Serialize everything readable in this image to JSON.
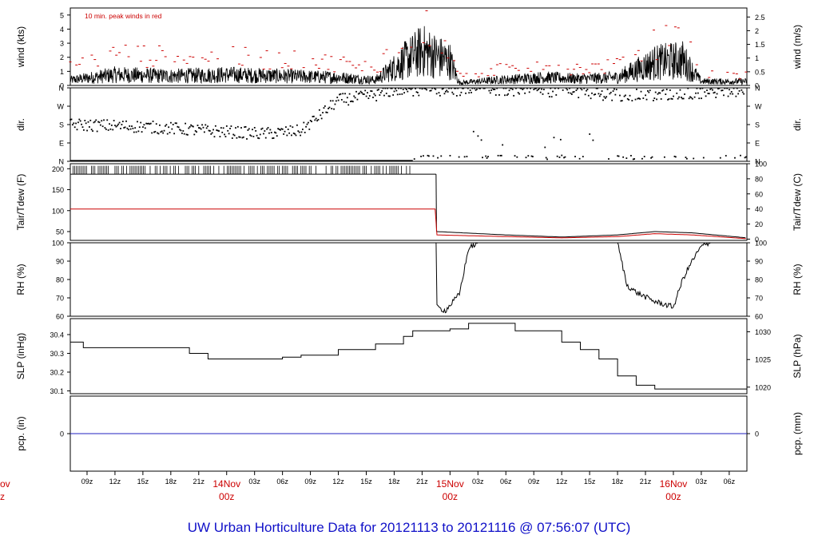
{
  "footer": {
    "title": "UW Urban Horticulture Data for 20121113  to  20121116 @ 07:56:07  (UTC)"
  },
  "colors": {
    "frame": "#000000",
    "series_main": "#000000",
    "series_red": "#cc0000",
    "pcp_line": "#2020c0",
    "day_label": "#cc0000",
    "footer": "#1010c8"
  },
  "chart_data": {
    "type": "line",
    "x_axis": {
      "hour_ticks": [
        "09z",
        "12z",
        "15z",
        "18z",
        "21z",
        "03z",
        "06z",
        "09z",
        "12z",
        "15z",
        "18z",
        "21z",
        "03z",
        "06z",
        "09z",
        "12z",
        "15z",
        "18z",
        "21z",
        "03z",
        "06z"
      ],
      "day_labels": [
        {
          "line1": "14Nov",
          "line2": "00z",
          "hour": 24
        },
        {
          "line1": "15Nov",
          "line2": "00z",
          "hour": 48
        },
        {
          "line1": "16Nov",
          "line2": "00z",
          "hour": 72
        }
      ],
      "edge_label": {
        "line1": "ov",
        "line2": "z"
      },
      "range_hours": [
        7.2,
        79.9
      ]
    },
    "panels": [
      {
        "id": "wind",
        "left_label": "wind (kts)",
        "right_label": "wind (m/s)",
        "annotation": "10 min. peak winds in red",
        "left_ticks": [
          "0",
          "1",
          "2",
          "3",
          "4",
          "5"
        ],
        "left_range": [
          0,
          5.5
        ],
        "right_ticks": [
          "0",
          "0.5",
          "1",
          "1.5",
          "2",
          "2.5"
        ],
        "series": [
          {
            "kind": "line",
            "color": "black",
            "profile": [
              [
                7.2,
                0.4
              ],
              [
                12,
                0.8
              ],
              [
                18,
                0.7
              ],
              [
                24,
                0.8
              ],
              [
                30,
                0.7
              ],
              [
                36,
                0.6
              ],
              [
                40,
                0.4
              ],
              [
                43,
                1.8
              ],
              [
                45,
                2.6
              ],
              [
                48,
                1.8
              ],
              [
                49,
                0.2
              ],
              [
                53,
                0.4
              ],
              [
                58,
                0.6
              ],
              [
                62,
                0.5
              ],
              [
                66,
                0.6
              ],
              [
                70,
                1.7
              ],
              [
                73,
                1.9
              ],
              [
                75,
                0.3
              ],
              [
                79.9,
                0.3
              ]
            ]
          },
          {
            "kind": "points",
            "color": "red",
            "profile": [
              [
                7.2,
                1.3
              ],
              [
                12,
                2.2
              ],
              [
                18,
                2.0
              ],
              [
                24,
                2.0
              ],
              [
                30,
                1.8
              ],
              [
                36,
                1.6
              ],
              [
                40,
                1.2
              ],
              [
                43,
                3.5
              ],
              [
                45,
                4.5
              ],
              [
                48,
                3.0
              ],
              [
                49,
                0.6
              ],
              [
                53,
                1.2
              ],
              [
                58,
                1.4
              ],
              [
                62,
                1.2
              ],
              [
                66,
                1.4
              ],
              [
                70,
                3.0
              ],
              [
                73,
                3.3
              ],
              [
                75,
                0.8
              ],
              [
                79.9,
                0.7
              ]
            ]
          }
        ]
      },
      {
        "id": "dir",
        "left_label": "dir.",
        "right_label": "dir.",
        "left_ticks": [
          "N",
          "E",
          "S",
          "W",
          "N"
        ],
        "left_range": [
          0,
          360
        ],
        "right_ticks": [
          "N",
          "E",
          "S",
          "W",
          "N"
        ],
        "series": [
          {
            "kind": "points",
            "color": "black",
            "profile": [
              [
                7.2,
                180
              ],
              [
                15,
                170
              ],
              [
                22,
                150
              ],
              [
                28,
                135
              ],
              [
                32,
                150
              ],
              [
                36,
                300
              ],
              [
                40,
                325
              ],
              [
                42,
                350
              ],
              [
                48,
                345
              ],
              [
                52,
                355
              ],
              [
                60,
                345
              ],
              [
                64,
                330
              ],
              [
                70,
                320
              ],
              [
                76,
                340
              ],
              [
                79.9,
                350
              ]
            ]
          }
        ]
      },
      {
        "id": "temp",
        "left_label": "Tair/Tdew (F)",
        "right_label": "Tair/Tdew (C)",
        "left_ticks": [
          "50",
          "100",
          "150",
          "200"
        ],
        "left_range": [
          29,
          212
        ],
        "right_ticks": [
          "0",
          "20",
          "40",
          "60",
          "80",
          "100"
        ],
        "series": [
          {
            "kind": "line",
            "color": "black",
            "name": "Tair",
            "profile": [
              [
                7.2,
                187
              ],
              [
                46.5,
                187
              ],
              [
                46.55,
                50
              ],
              [
                54,
                42
              ],
              [
                60,
                37
              ],
              [
                66,
                42
              ],
              [
                70,
                50
              ],
              [
                74,
                47
              ],
              [
                79.9,
                35
              ]
            ]
          },
          {
            "kind": "line",
            "color": "red",
            "name": "Tdew",
            "profile": [
              [
                7.2,
                104
              ],
              [
                46.5,
                104
              ],
              [
                46.55,
                42
              ],
              [
                54,
                38
              ],
              [
                60,
                35
              ],
              [
                66,
                38
              ],
              [
                70,
                45
              ],
              [
                74,
                42
              ],
              [
                79.9,
                33
              ]
            ]
          }
        ]
      },
      {
        "id": "rh",
        "left_label": "RH (%)",
        "right_label": "RH (%)",
        "left_ticks": [
          "60",
          "70",
          "80",
          "90",
          "100"
        ],
        "left_range": [
          60,
          100
        ],
        "right_ticks": [
          "60",
          "70",
          "80",
          "90",
          "100"
        ],
        "series": [
          {
            "kind": "line",
            "color": "black",
            "profile": [
              [
                46.5,
                100
              ],
              [
                46.55,
                65
              ],
              [
                47.5,
                63
              ],
              [
                49,
                72
              ],
              [
                50,
                97
              ],
              [
                51,
                100
              ],
              [
                66,
                100
              ],
              [
                67,
                77
              ],
              [
                68,
                73
              ],
              [
                70,
                68
              ],
              [
                72,
                65
              ],
              [
                73,
                80
              ],
              [
                74,
                90
              ],
              [
                75,
                98
              ],
              [
                76,
                100
              ]
            ]
          }
        ]
      },
      {
        "id": "slp",
        "left_label": "SLP (inHg)",
        "right_label": "SLP (hPa)",
        "left_ticks": [
          "30.1",
          "30.2",
          "30.3",
          "30.4"
        ],
        "left_range": [
          30.085,
          30.485
        ],
        "right_ticks": [
          "1020",
          "1025",
          "1030"
        ],
        "right_tick_values": [
          30.12,
          30.267,
          30.415
        ],
        "series": [
          {
            "kind": "step",
            "color": "black",
            "profile": [
              [
                7.2,
                30.36
              ],
              [
                8.5,
                30.33
              ],
              [
                18,
                30.33
              ],
              [
                20,
                30.3
              ],
              [
                22,
                30.27
              ],
              [
                28,
                30.27
              ],
              [
                30,
                30.28
              ],
              [
                32,
                30.29
              ],
              [
                36,
                30.32
              ],
              [
                40,
                30.35
              ],
              [
                43,
                30.39
              ],
              [
                44,
                30.42
              ],
              [
                48,
                30.43
              ],
              [
                50,
                30.46
              ],
              [
                53,
                30.46
              ],
              [
                55,
                30.42
              ],
              [
                60,
                30.36
              ],
              [
                62,
                30.32
              ],
              [
                64,
                30.27
              ],
              [
                66,
                30.18
              ],
              [
                68,
                30.13
              ],
              [
                70,
                30.11
              ],
              [
                76,
                30.11
              ],
              [
                79.9,
                30.1
              ]
            ]
          }
        ]
      },
      {
        "id": "pcp",
        "left_label": "pcp. (in)",
        "right_label": "pcp. (mm)",
        "left_ticks": [
          "0"
        ],
        "left_range": [
          -1,
          1
        ],
        "right_ticks": [
          "0"
        ],
        "series": [
          {
            "kind": "line",
            "color": "blue",
            "profile": [
              [
                7.2,
                0
              ],
              [
                79.9,
                0
              ]
            ]
          }
        ]
      }
    ]
  }
}
